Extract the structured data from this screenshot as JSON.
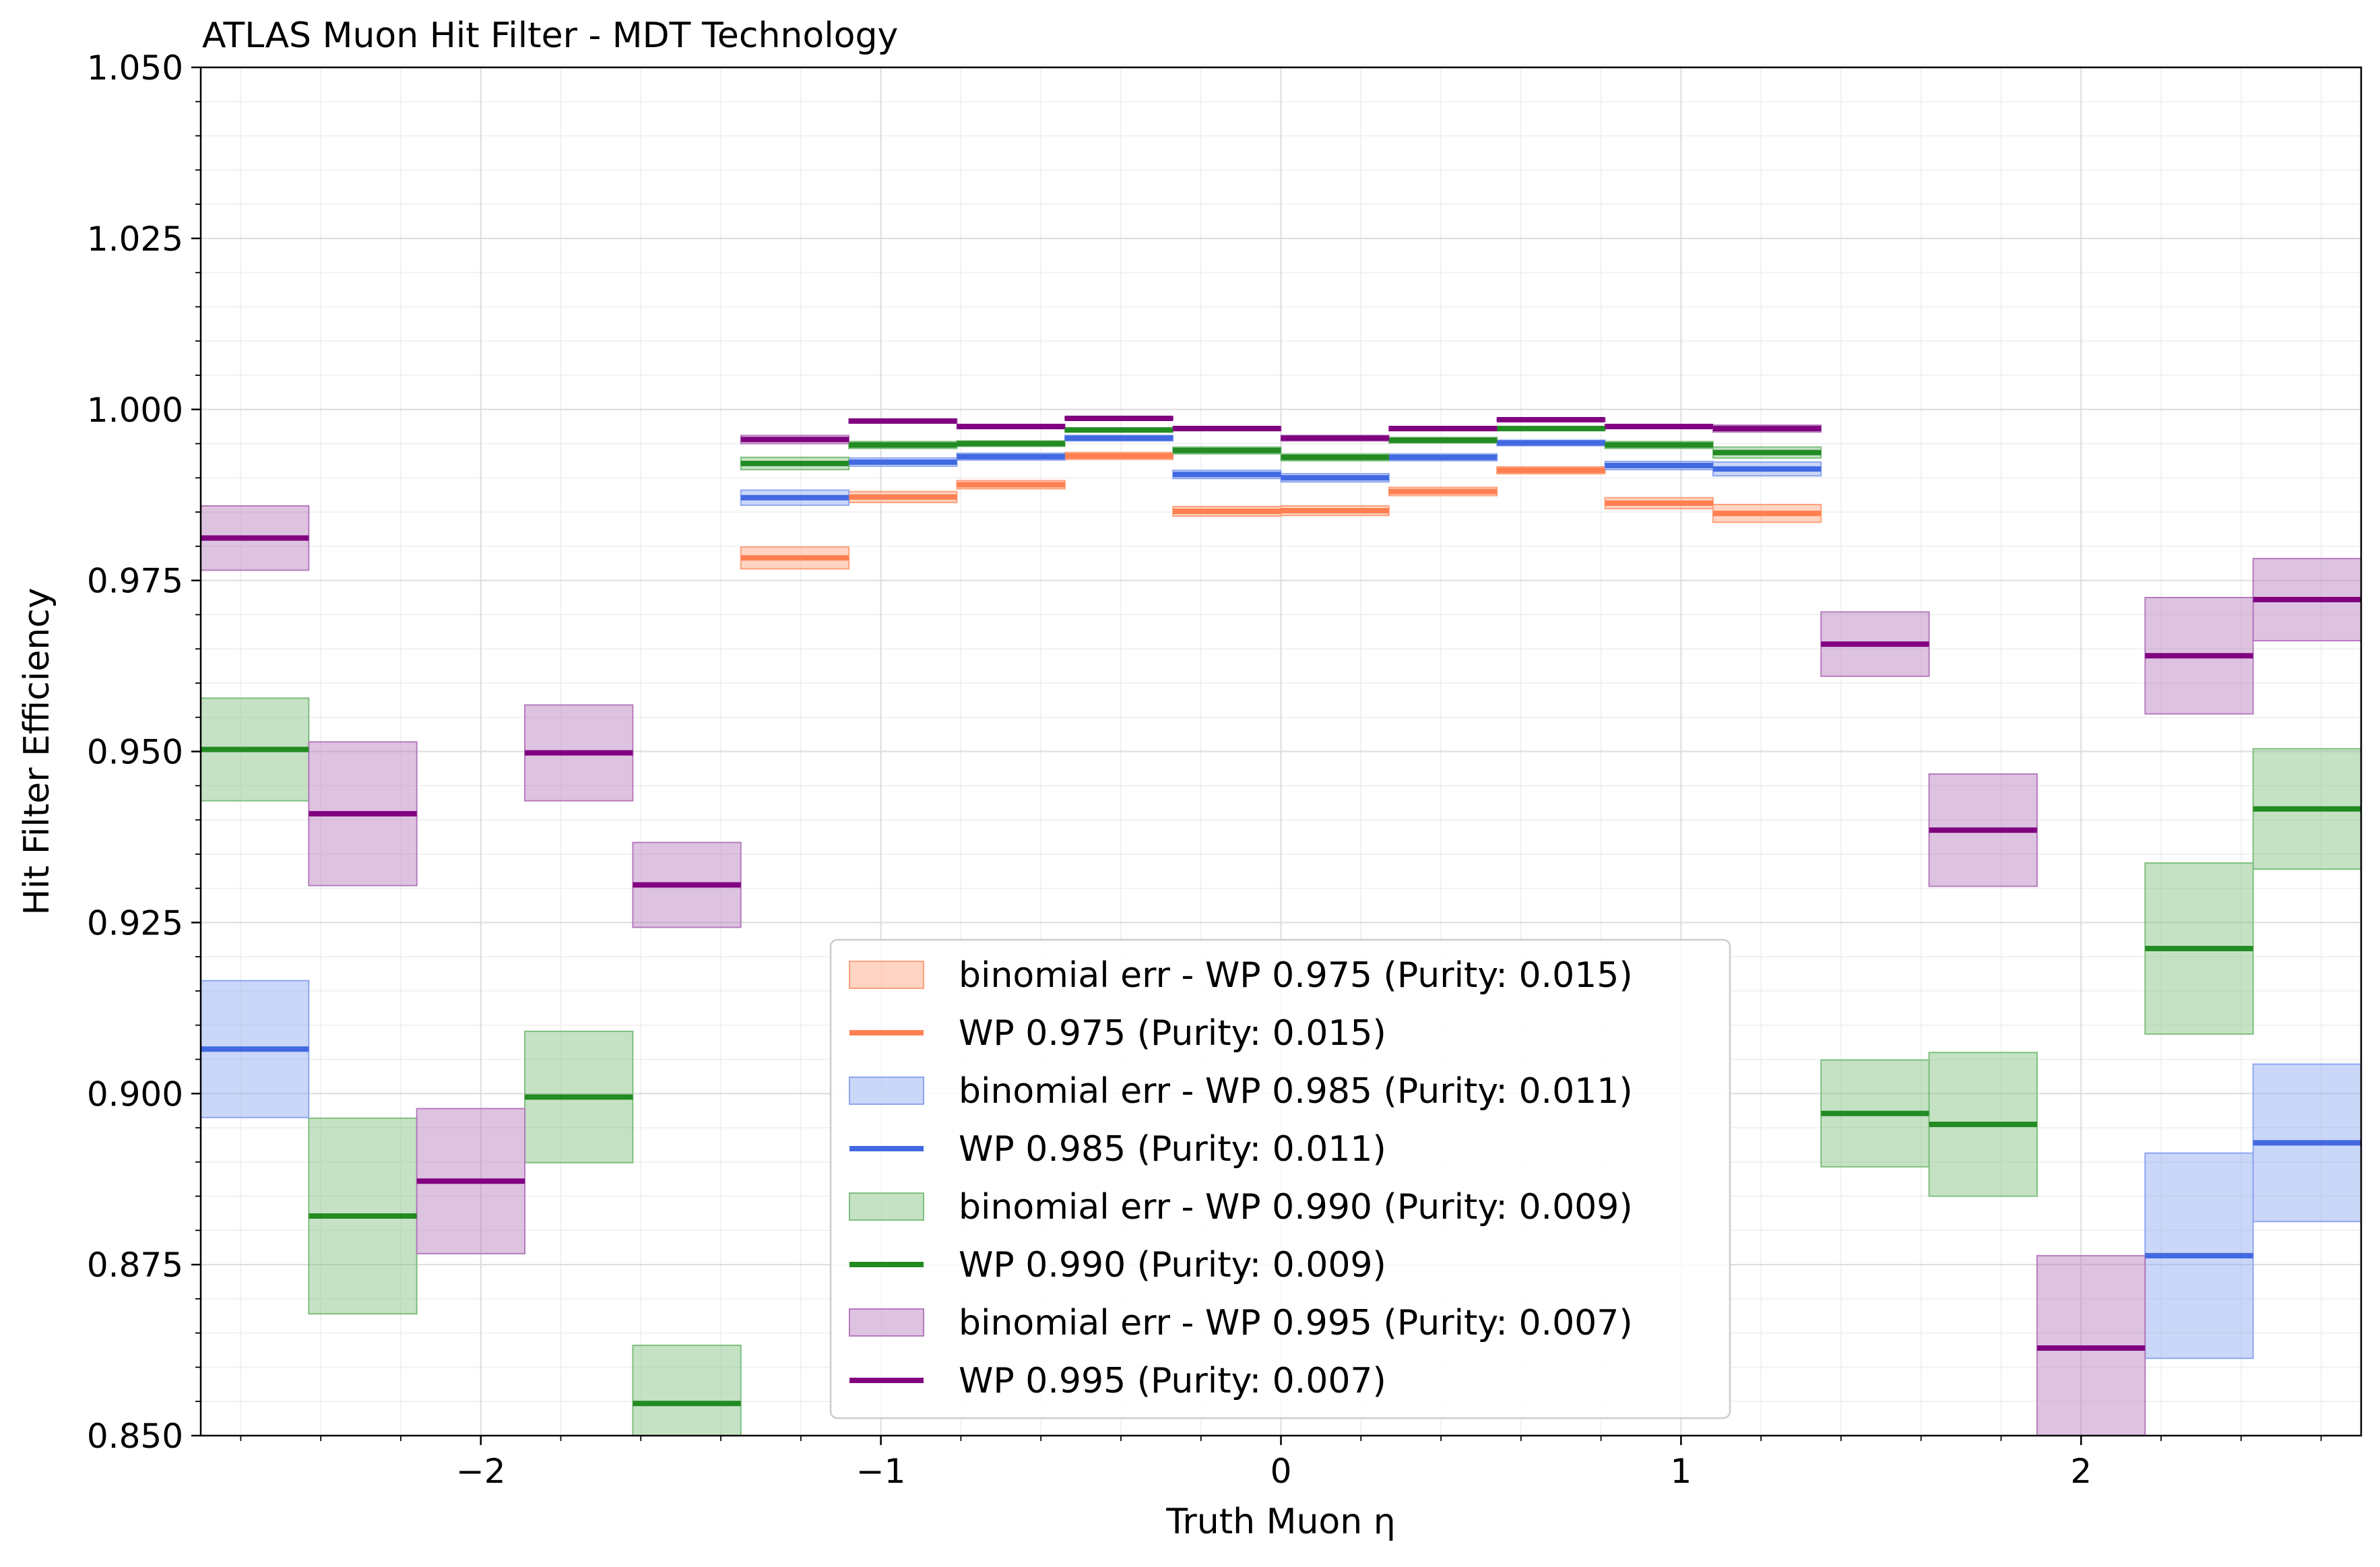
{
  "chart_data": {
    "type": "step-band",
    "title": "ATLAS Muon Hit Filter - MDT Technology",
    "xlabel": "Truth Muon η",
    "ylabel": "Hit Filter Efficiency",
    "xlim": [
      -2.7,
      2.7
    ],
    "ylim": [
      0.85,
      1.05
    ],
    "xticks": [
      -2,
      -1,
      0,
      1,
      2
    ],
    "xtick_labels": [
      "−2",
      "−1",
      "0",
      "1",
      "2"
    ],
    "yticks": [
      0.85,
      0.875,
      0.9,
      0.925,
      0.95,
      0.975,
      1.0,
      1.025,
      1.05
    ],
    "ytick_labels": [
      "0.850",
      "0.875",
      "0.900",
      "0.925",
      "0.950",
      "0.975",
      "1.000",
      "1.025",
      "1.050"
    ],
    "grid": true,
    "legend_position": "lower center",
    "bin_edges": [
      -2.7,
      -2.43,
      -2.16,
      -1.89,
      -1.62,
      -1.35,
      -1.08,
      -0.81,
      -0.54,
      -0.27,
      0.0,
      0.27,
      0.54,
      0.81,
      1.08,
      1.35,
      1.62,
      1.89,
      2.16,
      2.43,
      2.7
    ],
    "series": [
      {
        "name": "WP 0.975 (Purity: 0.015)",
        "band_name": "binomial err - WP 0.975 (Purity: 0.015)",
        "color": "#ff7f50",
        "band_color": "#ffa07a",
        "values": [
          null,
          null,
          null,
          null,
          null,
          0.9783,
          0.9872,
          0.989,
          0.9932,
          0.9851,
          0.9852,
          0.988,
          0.9911,
          0.9863,
          0.9848,
          null,
          null,
          null,
          null,
          null
        ],
        "err": [
          null,
          null,
          null,
          null,
          null,
          0.0016,
          0.0008,
          0.0006,
          0.0005,
          0.0007,
          0.0007,
          0.0006,
          0.0005,
          0.0008,
          0.0013,
          null,
          null,
          null,
          null,
          null
        ]
      },
      {
        "name": "WP 0.985 (Purity: 0.011)",
        "band_name": "binomial err - WP 0.985 (Purity: 0.011)",
        "color": "#4169e1",
        "band_color": "#8ca6f0",
        "values": [
          0.9065,
          null,
          null,
          null,
          null,
          0.9871,
          0.9923,
          0.9931,
          0.9958,
          0.9905,
          0.99,
          0.993,
          0.9951,
          0.9918,
          0.9913,
          null,
          null,
          null,
          0.8763,
          0.8928
        ],
        "err": [
          0.01,
          null,
          null,
          null,
          null,
          0.0011,
          0.0006,
          0.0005,
          0.0004,
          0.0006,
          0.0006,
          0.0005,
          0.0004,
          0.0006,
          0.001,
          null,
          null,
          null,
          0.015,
          0.0115
        ]
      },
      {
        "name": "WP 0.990 (Purity: 0.009)",
        "band_name": "binomial err - WP 0.990 (Purity: 0.009)",
        "color": "#228b22",
        "band_color": "#7fbf7f",
        "values": [
          0.9503,
          0.8821,
          null,
          0.8995,
          0.8547,
          0.9921,
          0.9948,
          0.995,
          0.997,
          0.994,
          0.993,
          0.9955,
          0.9972,
          0.9948,
          0.9937,
          0.8971,
          0.8955,
          null,
          0.9212,
          0.9416
        ],
        "err": [
          0.0075,
          0.0143,
          null,
          0.0096,
          0.0085,
          0.0009,
          0.0005,
          0.0004,
          0.0003,
          0.0005,
          0.0005,
          0.0004,
          0.0003,
          0.0005,
          0.0008,
          0.0078,
          0.0105,
          null,
          0.0125,
          0.0088
        ]
      },
      {
        "name": "WP 0.995 (Purity: 0.007)",
        "band_name": "binomial err - WP 0.995 (Purity: 0.007)",
        "color": "#800080",
        "band_color": "#b57bbd",
        "values": [
          0.9812,
          0.9409,
          0.8872,
          0.9498,
          0.9305,
          0.9956,
          0.9983,
          0.9975,
          0.9987,
          0.9972,
          0.9958,
          0.9972,
          0.9985,
          0.9975,
          0.9972,
          0.9657,
          0.9385,
          0.8628,
          0.964,
          0.9722
        ],
        "err": [
          0.0047,
          0.0105,
          0.0106,
          0.007,
          0.0062,
          0.0006,
          0.0003,
          0.0003,
          0.0002,
          0.0003,
          0.0004,
          0.0003,
          0.0002,
          0.0003,
          0.0005,
          0.0047,
          0.0082,
          0.0135,
          0.0085,
          0.006
        ]
      }
    ]
  }
}
